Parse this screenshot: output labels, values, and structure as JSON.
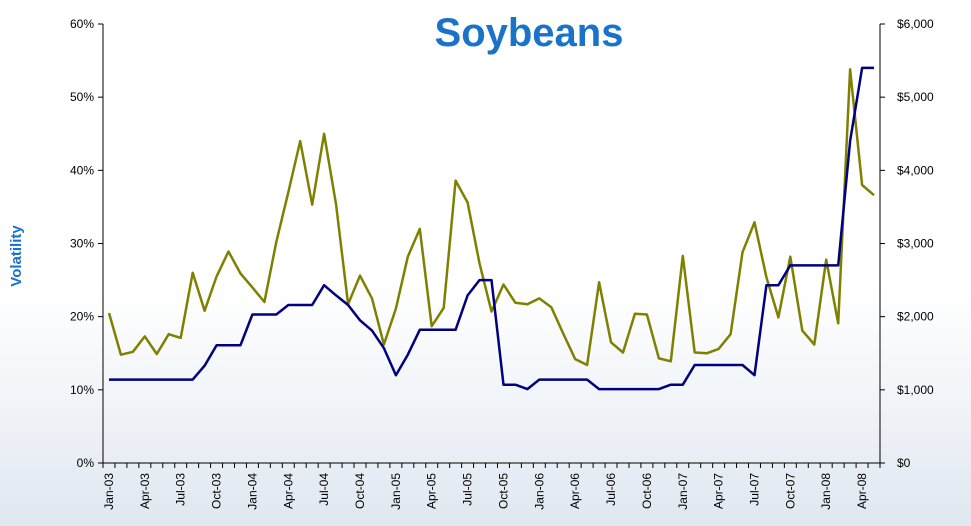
{
  "chart_data": {
    "type": "line",
    "title": "Soybeans",
    "ylabel": "Volatility",
    "x": [
      "Jan-03",
      "Feb-03",
      "Mar-03",
      "Apr-03",
      "May-03",
      "Jun-03",
      "Jul-03",
      "Aug-03",
      "Sep-03",
      "Oct-03",
      "Nov-03",
      "Dec-03",
      "Jan-04",
      "Feb-04",
      "Mar-04",
      "Apr-04",
      "May-04",
      "Jun-04",
      "Jul-04",
      "Aug-04",
      "Sep-04",
      "Oct-04",
      "Nov-04",
      "Dec-04",
      "Jan-05",
      "Feb-05",
      "Mar-05",
      "Apr-05",
      "May-05",
      "Jun-05",
      "Jul-05",
      "Aug-05",
      "Sep-05",
      "Oct-05",
      "Nov-05",
      "Dec-05",
      "Jan-06",
      "Feb-06",
      "Mar-06",
      "Apr-06",
      "May-06",
      "Jun-06",
      "Jul-06",
      "Aug-06",
      "Sep-06",
      "Oct-06",
      "Nov-06",
      "Dec-06",
      "Jan-07",
      "Feb-07",
      "Mar-07",
      "Apr-07",
      "May-07",
      "Jun-07",
      "Jul-07",
      "Aug-07",
      "Sep-07",
      "Oct-07",
      "Nov-07",
      "Dec-07",
      "Jan-08",
      "Feb-08",
      "Mar-08",
      "Apr-08",
      "May-08"
    ],
    "x_tick_labels": [
      "Jan-03",
      "Apr-03",
      "Jul-03",
      "Oct-03",
      "Jan-04",
      "Apr-04",
      "Jul-04",
      "Oct-04",
      "Jan-05",
      "Apr-05",
      "Jul-05",
      "Oct-05",
      "Jan-06",
      "Apr-06",
      "Jul-06",
      "Oct-06",
      "Jan-07",
      "Apr-07",
      "Jul-07",
      "Oct-07",
      "Jan-08",
      "Apr-08"
    ],
    "y_left": {
      "ylim": [
        0,
        60
      ],
      "ticks": [
        "0%",
        "10%",
        "20%",
        "30%",
        "40%",
        "50%",
        "60%"
      ]
    },
    "y_right": {
      "ylim": [
        0,
        6000
      ],
      "ticks": [
        "$0",
        "$1,000",
        "$2,000",
        "$3,000",
        "$4,000",
        "$5,000",
        "$6,000"
      ]
    },
    "series": [
      {
        "axis": "left",
        "color": "#808000",
        "values": [
          20.5,
          14.8,
          15.2,
          17.3,
          14.9,
          17.6,
          17.1,
          26.0,
          20.8,
          25.5,
          28.9,
          25.9,
          24.0,
          22.0,
          30.2,
          37.0,
          44.0,
          35.3,
          45.0,
          35.3,
          21.7,
          25.6,
          22.5,
          16.2,
          21.1,
          28.2,
          32.0,
          18.7,
          21.2,
          38.6,
          35.6,
          27.3,
          20.7,
          24.4,
          21.9,
          21.7,
          22.5,
          21.3,
          17.7,
          14.2,
          13.4,
          24.7,
          16.5,
          15.1,
          20.4,
          20.3,
          14.3,
          13.9,
          28.3,
          15.1,
          15.0,
          15.6,
          17.6,
          28.8,
          32.9,
          25.4,
          19.9,
          28.2,
          18.1,
          16.2,
          27.8,
          19.1,
          53.8,
          38.0,
          36.6
        ]
      },
      {
        "axis": "right",
        "color": "#000080",
        "values": [
          1140,
          1140,
          1140,
          1140,
          1140,
          1140,
          1140,
          1140,
          1330,
          1610,
          1610,
          1610,
          2030,
          2030,
          2030,
          2160,
          2160,
          2160,
          2430,
          2290,
          2160,
          1950,
          1810,
          1570,
          1200,
          1480,
          1820,
          1820,
          1820,
          1820,
          2290,
          2500,
          2500,
          1070,
          1070,
          1010,
          1140,
          1140,
          1140,
          1140,
          1140,
          1010,
          1010,
          1010,
          1010,
          1010,
          1010,
          1070,
          1070,
          1340,
          1340,
          1340,
          1340,
          1340,
          1200,
          2430,
          2430,
          2700,
          2700,
          2700,
          2700,
          2700,
          4400,
          5400,
          5400
        ]
      }
    ],
    "grid": false,
    "legend": "none"
  }
}
